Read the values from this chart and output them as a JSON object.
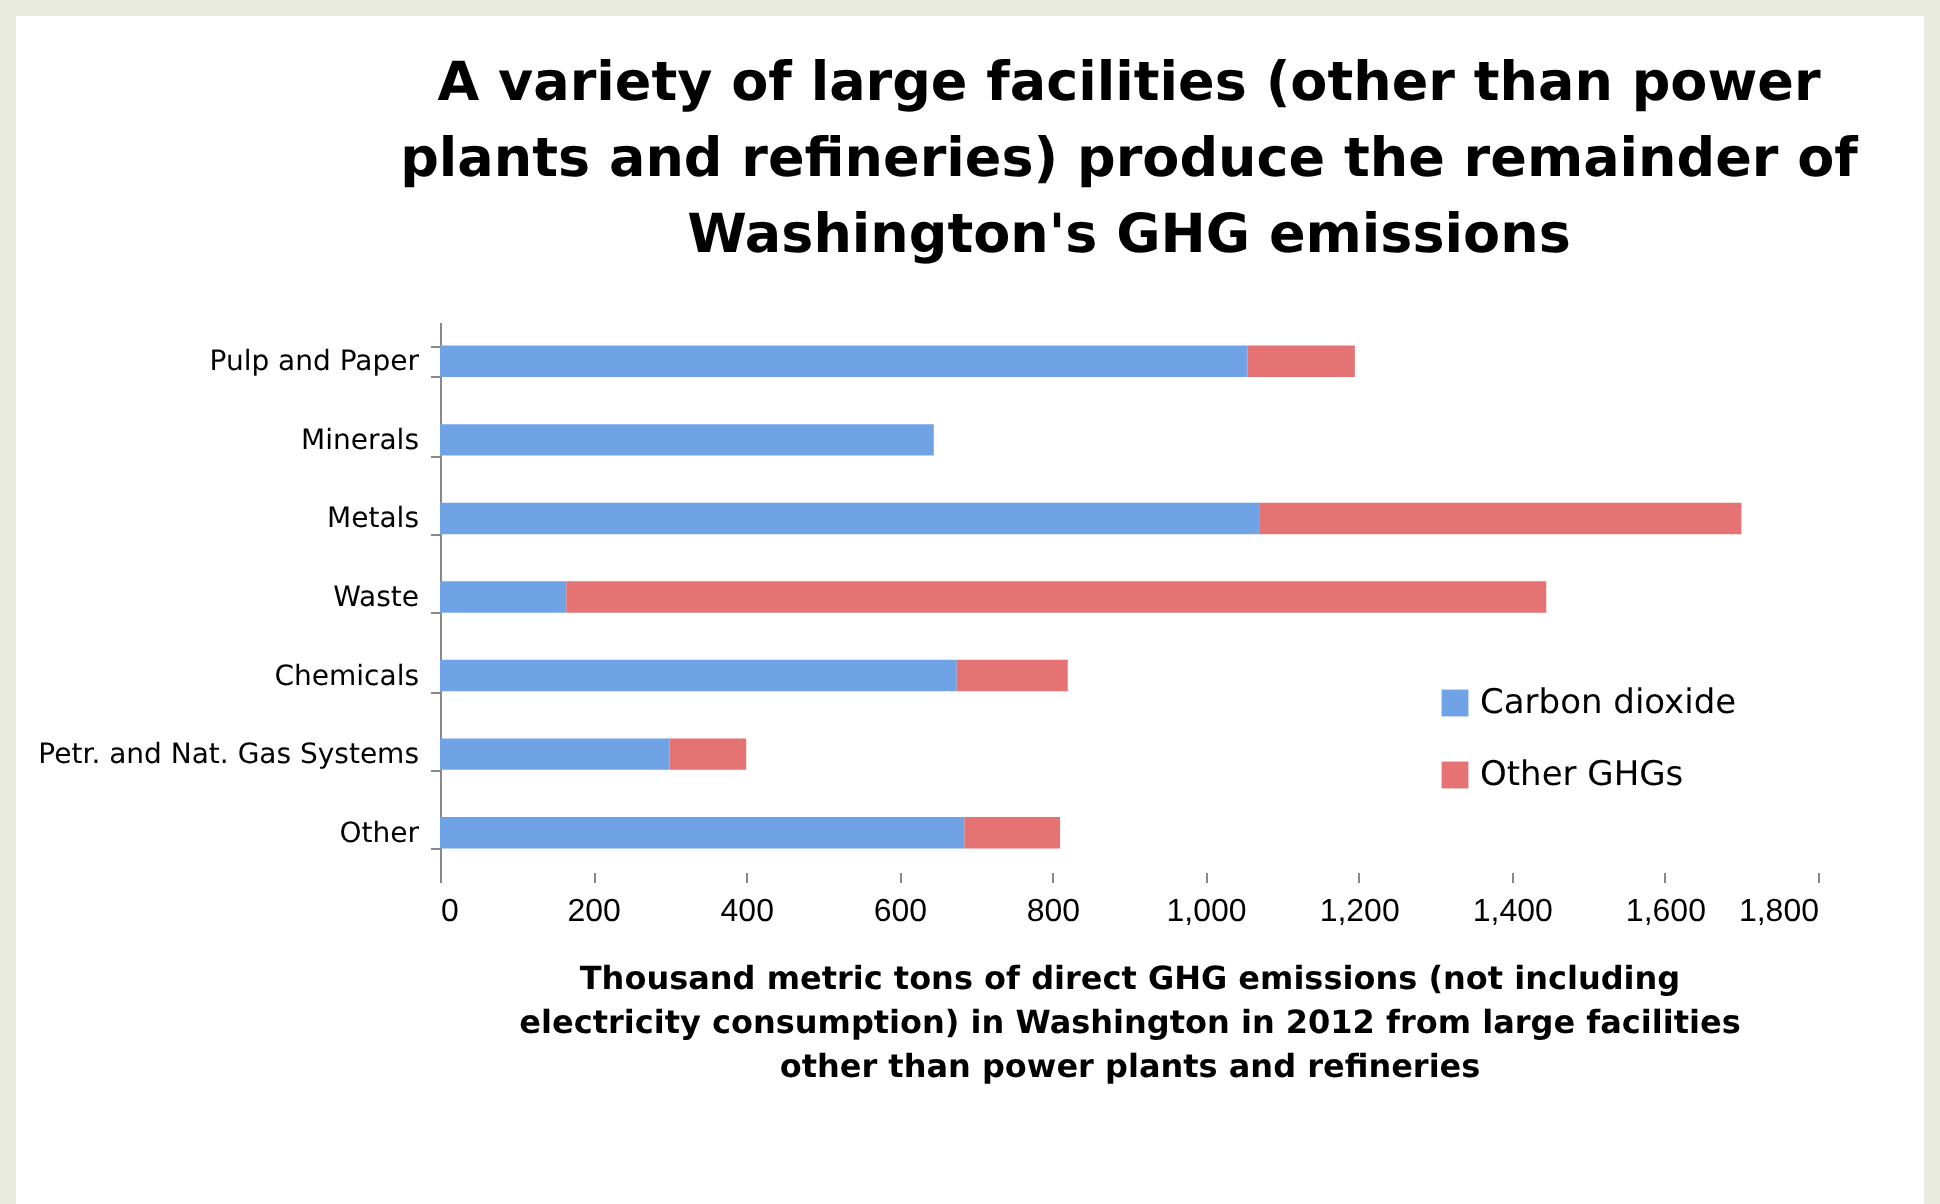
{
  "chart_data": {
    "type": "bar",
    "orientation": "horizontal",
    "stacked": true,
    "title": "A variety of large facilities (other than power plants and refineries) produce the remainder of Washington's GHG emissions",
    "xlabel": "Thousand metric tons of direct GHG emissions (not including electricity consumption) in Washington in 2012 from large facilities other than power plants and refineries",
    "categories": [
      "Pulp and Paper",
      "Minerals",
      "Metals",
      "Waste",
      "Chemicals",
      "Petr. and Nat. Gas Systems",
      "Other"
    ],
    "series": [
      {
        "name": "Carbon dioxide",
        "color": "#6fa3e6",
        "values": [
          1055,
          645,
          1070,
          165,
          675,
          300,
          685
        ]
      },
      {
        "name": "Other GHGs",
        "color": "#e57373",
        "values": [
          140,
          0,
          630,
          1280,
          145,
          100,
          125
        ]
      }
    ],
    "xlim": [
      0,
      1800
    ],
    "xticks": [
      0,
      {
        "value": 200,
        "label": "200"
      },
      400,
      600,
      800,
      {
        "value": 1000,
        "label": "1,000"
      },
      {
        "value": 1200,
        "label": "1,200"
      },
      {
        "value": 1400,
        "label": "1,400"
      },
      {
        "value": 1600,
        "label": "1,600"
      },
      {
        "value": 1800,
        "label": "1,800"
      }
    ],
    "grid": false,
    "legend": "bottom right"
  }
}
